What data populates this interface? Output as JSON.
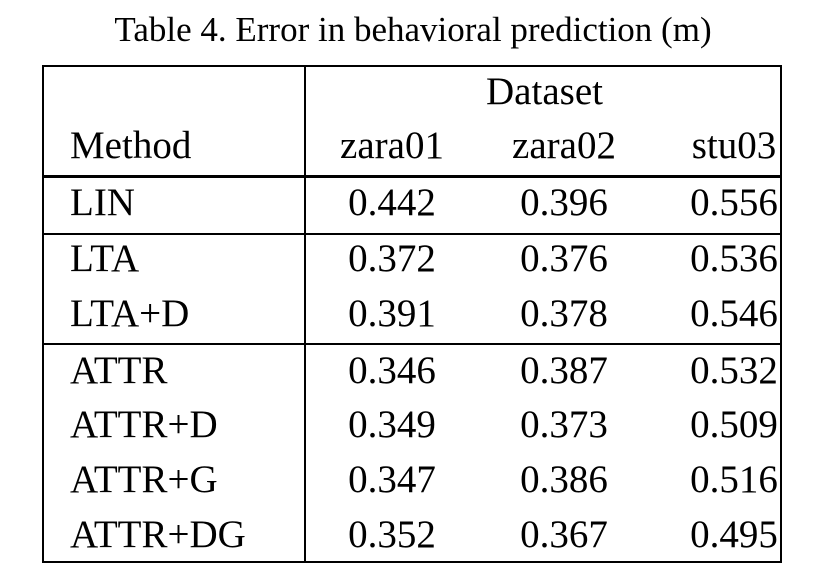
{
  "caption": "Table 4. Error in behavioral prediction (m)",
  "table": {
    "group_header": "Dataset",
    "method_header": "Method",
    "columns": [
      "zara01",
      "zara02",
      "stu03"
    ],
    "rows": [
      {
        "method": "LIN",
        "values": [
          "0.442",
          "0.396",
          "0.556"
        ]
      },
      {
        "method": "LTA",
        "values": [
          "0.372",
          "0.376",
          "0.536"
        ]
      },
      {
        "method": "LTA+D",
        "values": [
          "0.391",
          "0.378",
          "0.546"
        ]
      },
      {
        "method": "ATTR",
        "values": [
          "0.346",
          "0.387",
          "0.532"
        ]
      },
      {
        "method": "ATTR+D",
        "values": [
          "0.349",
          "0.373",
          "0.509"
        ]
      },
      {
        "method": "ATTR+G",
        "values": [
          "0.347",
          "0.386",
          "0.516"
        ]
      },
      {
        "method": "ATTR+DG",
        "values": [
          "0.352",
          "0.367",
          "0.495"
        ]
      }
    ]
  }
}
